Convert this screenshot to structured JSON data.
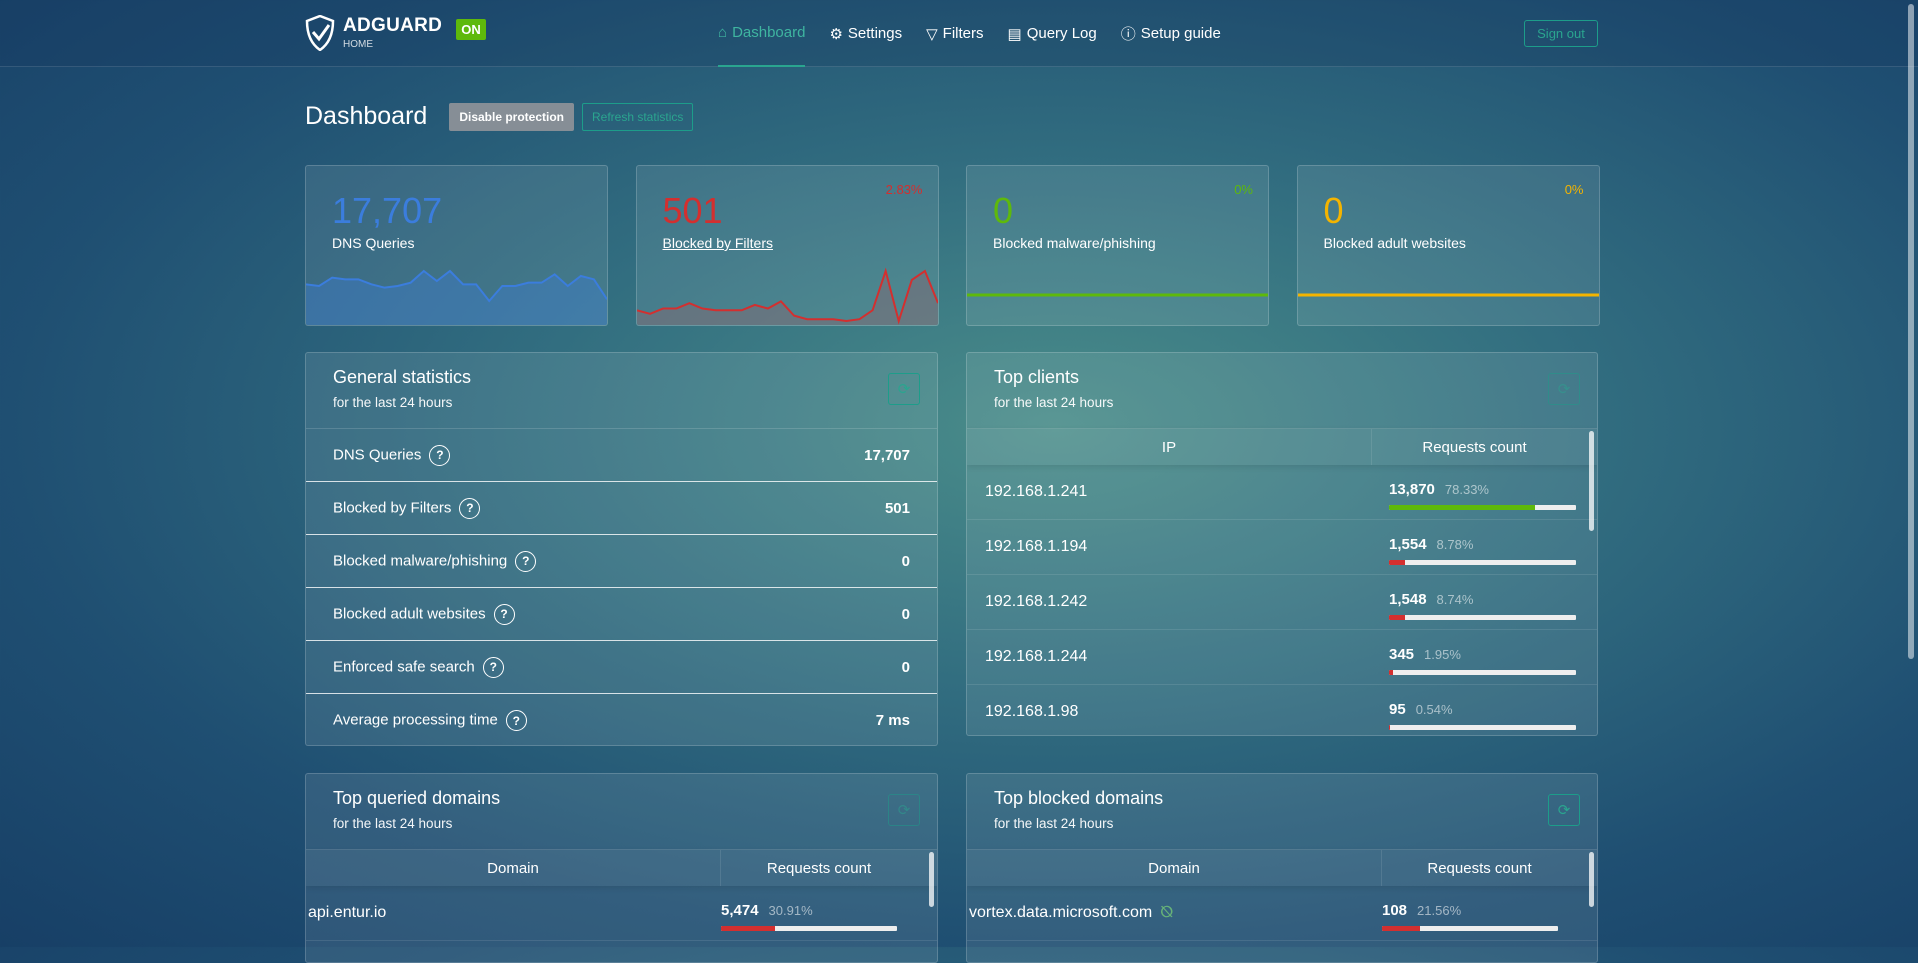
{
  "header": {
    "logo": "ADGUARD",
    "logo_sub": "HOME",
    "status_badge": "ON",
    "nav": [
      {
        "label": "Dashboard",
        "icon": "home-icon",
        "active": true
      },
      {
        "label": "Settings",
        "icon": "gear-icon"
      },
      {
        "label": "Filters",
        "icon": "filter-icon"
      },
      {
        "label": "Query Log",
        "icon": "document-icon"
      },
      {
        "label": "Setup guide",
        "icon": "help-icon"
      }
    ],
    "sign_out": "Sign out"
  },
  "page": {
    "title": "Dashboard",
    "disable_protection": "Disable protection",
    "refresh_statistics": "Refresh statistics"
  },
  "counters": [
    {
      "value": "17,707",
      "label": "DNS Queries",
      "percent": "",
      "color": "#3b7ddd",
      "sparkline": [
        22,
        21,
        26,
        25,
        25,
        22,
        20,
        21,
        23,
        30,
        24,
        30,
        22,
        22,
        12,
        21,
        21,
        23,
        23,
        28,
        21,
        27,
        25,
        13
      ]
    },
    {
      "value": "501",
      "label": "Blocked by Filters",
      "percent": "2.83%",
      "color": "#d32f2f",
      "sparkline": [
        6,
        4,
        7,
        7,
        10,
        7,
        6,
        6,
        6,
        9,
        7,
        11,
        3,
        1,
        1,
        1,
        0,
        1,
        6,
        28,
        0,
        23,
        28,
        10
      ]
    },
    {
      "value": "0",
      "label": "Blocked malware/phishing",
      "percent": "0%",
      "color": "#5eb90b",
      "sparkline": [
        0,
        0
      ]
    },
    {
      "value": "0",
      "label": "Blocked adult websites",
      "percent": "0%",
      "color": "#f4b400",
      "sparkline": [
        0,
        0
      ]
    }
  ],
  "general": {
    "title": "General statistics",
    "subtitle": "for the last 24 hours",
    "rows": [
      {
        "label": "DNS Queries",
        "value": "17,707"
      },
      {
        "label": "Blocked by Filters",
        "value": "501"
      },
      {
        "label": "Blocked malware/phishing",
        "value": "0"
      },
      {
        "label": "Blocked adult websites",
        "value": "0"
      },
      {
        "label": "Enforced safe search",
        "value": "0"
      },
      {
        "label": "Average processing time",
        "value": "7 ms"
      }
    ]
  },
  "clients": {
    "title": "Top clients",
    "subtitle": "for the last 24 hours",
    "col1": "IP",
    "col2": "Requests count",
    "rows": [
      {
        "ip": "192.168.1.241",
        "count": "13,870",
        "percent": "78.33%",
        "fill": 78.33,
        "color": "#5eb90b"
      },
      {
        "ip": "192.168.1.194",
        "count": "1,554",
        "percent": "8.78%",
        "fill": 8.78,
        "color": "#d32f2f"
      },
      {
        "ip": "192.168.1.242",
        "count": "1,548",
        "percent": "8.74%",
        "fill": 8.74,
        "color": "#d32f2f"
      },
      {
        "ip": "192.168.1.244",
        "count": "345",
        "percent": "1.95%",
        "fill": 1.95,
        "color": "#d32f2f"
      },
      {
        "ip": "192.168.1.98",
        "count": "95",
        "percent": "0.54%",
        "fill": 0.54,
        "color": "#d32f2f"
      }
    ]
  },
  "queried": {
    "title": "Top queried domains",
    "subtitle": "for the last 24 hours",
    "col1": "Domain",
    "col2": "Requests count",
    "rows": [
      {
        "domain": "api.entur.io",
        "count": "5,474",
        "percent": "30.91%",
        "fill": 30.91,
        "color": "#d32f2f"
      }
    ]
  },
  "blocked": {
    "title": "Top blocked domains",
    "subtitle": "for the last 24 hours",
    "col1": "Domain",
    "col2": "Requests count",
    "rows": [
      {
        "domain": "vortex.data.microsoft.com",
        "count": "108",
        "percent": "21.56%",
        "fill": 21.56,
        "color": "#d32f2f",
        "icon": "privacy-tracker-icon"
      }
    ]
  }
}
